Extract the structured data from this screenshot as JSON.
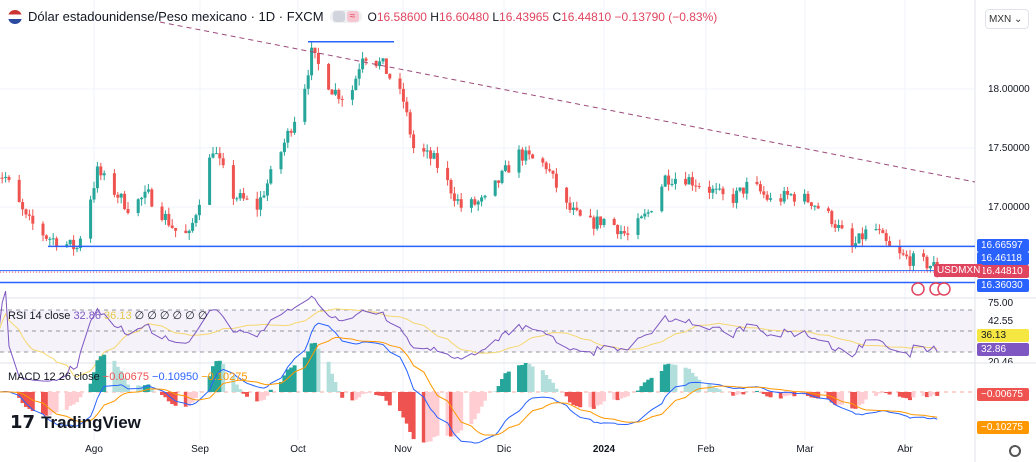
{
  "header": {
    "title": "Dólar estadounidense/Peso mexicano · 1D · FXCM",
    "open": "16.58600",
    "high": "16.60480",
    "low": "16.43965",
    "close": "16.44810",
    "change": "−0.13790 (−0.83%)",
    "labels": {
      "o": "O",
      "h": "H",
      "l": "L",
      "c": "C"
    }
  },
  "currency_select": "MXN",
  "price_axis": [
    "18.00000",
    "17.50000",
    "17.00000"
  ],
  "price_tags": [
    {
      "v": "16.66597",
      "color": "#2962ff"
    },
    {
      "v": "16.46118",
      "color": "#2962ff"
    },
    {
      "v": "16.44810",
      "color": "#e0455f"
    },
    {
      "v": "16.36030",
      "color": "#2962ff"
    }
  ],
  "symbol_label": "USDMXN",
  "rsi": {
    "label": "RSI 14 close",
    "v1": "32.86",
    "v2": "36.13",
    "na": "∅ ∅ ∅ ∅ ∅ ∅",
    "axis": [
      "75.00",
      "42.55",
      "20.46"
    ],
    "tag1": "36.13",
    "tag2": "32.86"
  },
  "macd": {
    "label": "MACD 12 26 close",
    "hist": "−0.00675",
    "macd": "−0.10950",
    "signal": "−0.10275",
    "tag1": "−0.00675",
    "tag2": "−0.10275"
  },
  "time_axis": [
    "Ago",
    "Sep",
    "Oct",
    "Nov",
    "Dic",
    "2024",
    "Feb",
    "Mar",
    "Abr"
  ],
  "brand": "TradingView",
  "colors": {
    "up": "#26a69a",
    "down": "#ef5350",
    "level": "#2962ff",
    "trend": "#9c4a7a",
    "rsi": "#7e57c2",
    "rsi_ma": "#f5d76e",
    "macd": "#2962ff",
    "signal": "#ff9800"
  },
  "chart_data": {
    "type": "candlestick",
    "approx_close_path": [
      [
        "2023-07-03",
        17.3
      ],
      [
        "2023-07-06",
        17.25
      ],
      [
        "2023-07-12",
        16.9
      ],
      [
        "2023-07-18",
        16.75
      ],
      [
        "2023-07-27",
        16.65
      ],
      [
        "2023-08-02",
        17.3
      ],
      [
        "2023-08-11",
        17.0
      ],
      [
        "2023-08-17",
        17.1
      ],
      [
        "2023-08-25",
        16.8
      ],
      [
        "2023-08-29",
        16.75
      ],
      [
        "2023-09-05",
        17.5
      ],
      [
        "2023-09-11",
        17.1
      ],
      [
        "2023-09-18",
        17.0
      ],
      [
        "2023-09-24",
        17.4
      ],
      [
        "2023-10-01",
        17.9
      ],
      [
        "2023-10-04",
        18.3
      ],
      [
        "2023-10-10",
        18.0
      ],
      [
        "2023-10-15",
        17.9
      ],
      [
        "2023-10-19",
        18.3
      ],
      [
        "2023-10-25",
        18.2
      ],
      [
        "2023-10-31",
        17.9
      ],
      [
        "2023-11-03",
        17.5
      ],
      [
        "2023-11-09",
        17.4
      ],
      [
        "2023-11-17",
        17.0
      ],
      [
        "2023-11-24",
        17.05
      ],
      [
        "2023-11-30",
        17.3
      ],
      [
        "2023-12-04",
        17.45
      ],
      [
        "2023-12-12",
        17.35
      ],
      [
        "2023-12-18",
        17.0
      ],
      [
        "2023-12-24",
        16.85
      ],
      [
        "2023-12-30",
        16.9
      ],
      [
        "2024-01-05",
        16.75
      ],
      [
        "2024-01-11",
        16.95
      ],
      [
        "2024-01-16",
        17.25
      ],
      [
        "2024-01-22",
        17.25
      ],
      [
        "2024-01-29",
        17.15
      ],
      [
        "2024-02-04",
        17.05
      ],
      [
        "2024-02-10",
        17.2
      ],
      [
        "2024-02-16",
        17.05
      ],
      [
        "2024-02-22",
        17.1
      ],
      [
        "2024-02-28",
        17.05
      ],
      [
        "2024-03-05",
        16.9
      ],
      [
        "2024-03-11",
        16.65
      ],
      [
        "2024-03-17",
        16.85
      ],
      [
        "2024-03-23",
        16.6
      ],
      [
        "2024-03-29",
        16.55
      ],
      [
        "2024-04-04",
        16.5
      ],
      [
        "2024-04-05",
        16.45
      ]
    ],
    "levels": [
      16.66597,
      16.46118,
      16.3603
    ],
    "box_top": 18.4
  }
}
